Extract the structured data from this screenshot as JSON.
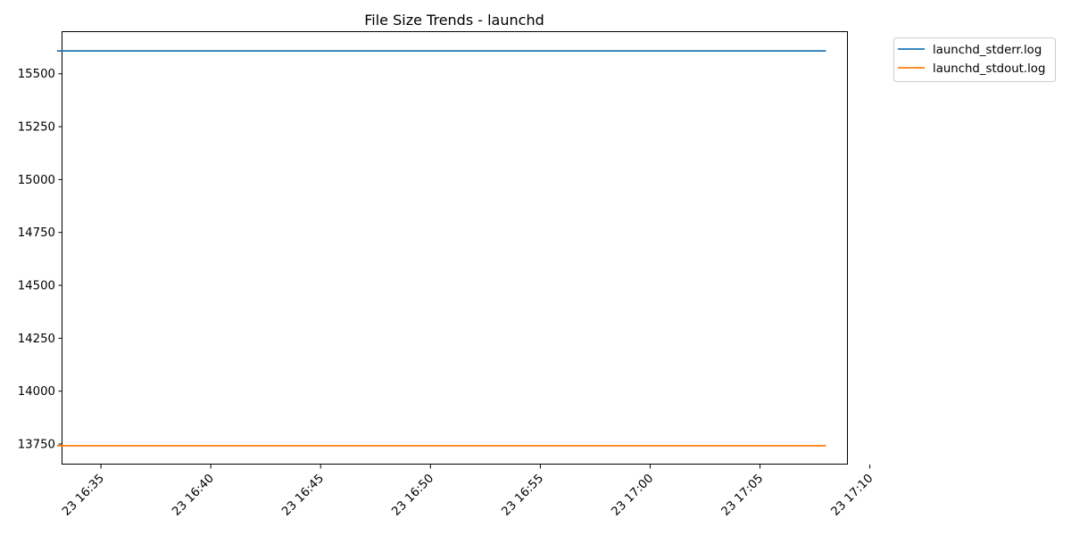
{
  "chart_data": {
    "type": "line",
    "title": "File Size Trends - launchd",
    "xlabel": "",
    "ylabel": "",
    "x_tick_labels": [
      "23 16:35",
      "23 16:40",
      "23 16:45",
      "23 16:50",
      "23 16:55",
      "23 17:00",
      "23 17:05",
      "23 17:10"
    ],
    "x_ticks": [
      "16:35",
      "16:40",
      "16:45",
      "16:50",
      "16:55",
      "17:00",
      "17:05",
      "17:10"
    ],
    "x_range": [
      "16:33:15",
      "17:09:00"
    ],
    "y_ticks": [
      13750,
      14000,
      14250,
      14500,
      14750,
      15000,
      15250,
      15500
    ],
    "ylim": [
      13653,
      15697
    ],
    "grid": false,
    "legend_position": "outside-top-right",
    "series": [
      {
        "name": "launchd_stderr.log",
        "color": "#1f77b4",
        "x": [
          "16:33",
          "17:08"
        ],
        "values": [
          15608,
          15608
        ]
      },
      {
        "name": "launchd_stdout.log",
        "color": "#ff7f0e",
        "x": [
          "16:33",
          "17:08"
        ],
        "values": [
          13742,
          13742
        ]
      }
    ]
  }
}
